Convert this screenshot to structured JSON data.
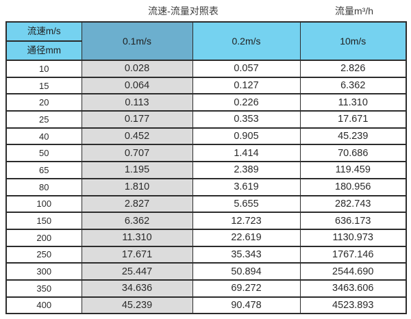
{
  "header": {
    "title": "流速-流量对照表",
    "unit_label": "流量m³/h"
  },
  "table": {
    "corner_top": "流速m/s",
    "corner_bottom": "通径mm",
    "columns": [
      "0.1m/s",
      "0.2m/s",
      "10m/s"
    ],
    "rows": [
      {
        "diameter": "10",
        "values": [
          "0.028",
          "0.057",
          "2.826"
        ]
      },
      {
        "diameter": "15",
        "values": [
          "0.064",
          "0.127",
          "6.362"
        ]
      },
      {
        "diameter": "20",
        "values": [
          "0.113",
          "0.226",
          "11.310"
        ]
      },
      {
        "diameter": "25",
        "values": [
          "0.177",
          "0.353",
          "17.671"
        ]
      },
      {
        "diameter": "40",
        "values": [
          "0.452",
          "0.905",
          "45.239"
        ]
      },
      {
        "diameter": "50",
        "values": [
          "0.707",
          "1.414",
          "70.686"
        ]
      },
      {
        "diameter": "65",
        "values": [
          "1.195",
          "2.389",
          "119.459"
        ]
      },
      {
        "diameter": "80",
        "values": [
          "1.810",
          "3.619",
          "180.956"
        ]
      },
      {
        "diameter": "100",
        "values": [
          "2.827",
          "5.655",
          "282.743"
        ]
      },
      {
        "diameter": "150",
        "values": [
          "6.362",
          "12.723",
          "636.173"
        ]
      },
      {
        "diameter": "200",
        "values": [
          "11.310",
          "22.619",
          "1130.973"
        ]
      },
      {
        "diameter": "250",
        "values": [
          "17.671",
          "35.343",
          "1767.146"
        ]
      },
      {
        "diameter": "300",
        "values": [
          "25.447",
          "50.894",
          "2544.690"
        ]
      },
      {
        "diameter": "350",
        "values": [
          "34.636",
          "69.272",
          "3463.606"
        ]
      },
      {
        "diameter": "400",
        "values": [
          "45.239",
          "90.478",
          "4523.893"
        ]
      }
    ]
  },
  "colors": {
    "header_blue": "#75d2f0",
    "header_highlight_blue": "#6cafce",
    "column_highlight_gray": "#dcdcdc",
    "border": "#2b2b2b"
  },
  "chart_data": {
    "type": "table",
    "title": "流速-流量对照表",
    "unit": "流量m³/h",
    "row_header": "通径mm",
    "column_header": "流速m/s",
    "columns": [
      "0.1m/s",
      "0.2m/s",
      "10m/s"
    ],
    "diameters_mm": [
      10,
      15,
      20,
      25,
      40,
      50,
      65,
      80,
      100,
      150,
      200,
      250,
      300,
      350,
      400
    ],
    "series": [
      {
        "name": "0.1m/s",
        "values": [
          0.028,
          0.064,
          0.113,
          0.177,
          0.452,
          0.707,
          1.195,
          1.81,
          2.827,
          6.362,
          11.31,
          17.671,
          25.447,
          34.636,
          45.239
        ]
      },
      {
        "name": "0.2m/s",
        "values": [
          0.057,
          0.127,
          0.226,
          0.353,
          0.905,
          1.414,
          2.389,
          3.619,
          5.655,
          12.723,
          22.619,
          35.343,
          50.894,
          69.272,
          90.478
        ]
      },
      {
        "name": "10m/s",
        "values": [
          2.826,
          6.362,
          11.31,
          17.671,
          45.239,
          70.686,
          119.459,
          180.956,
          282.743,
          636.173,
          1130.973,
          1767.146,
          2544.69,
          3463.606,
          4523.893
        ]
      }
    ]
  }
}
